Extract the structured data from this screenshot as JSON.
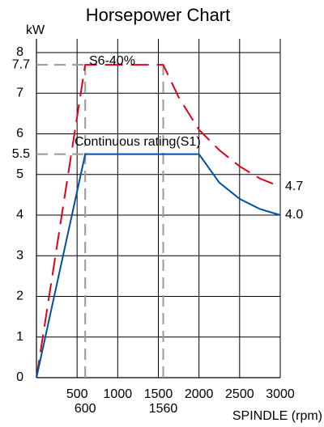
{
  "chart_data": {
    "type": "line",
    "title": "Horsepower Chart",
    "y_label": "kW",
    "x_label": "SPINDLE (rpm)",
    "xlim": [
      0,
      3000
    ],
    "ylim": [
      0,
      8
    ],
    "xticks": [
      500,
      1000,
      1500,
      2000,
      2500,
      3000
    ],
    "ref_xticks": [
      600,
      1560
    ],
    "yticks": [
      0,
      1,
      2,
      3,
      4,
      5,
      6,
      7,
      8
    ],
    "ref_yticks": [
      5.5,
      7.7
    ],
    "grid": true,
    "series": [
      {
        "name": "S6-40%",
        "color": "#e0001b",
        "dashed": true,
        "x": [
          0,
          600,
          1560,
          1750,
          2000,
          2250,
          2500,
          2750,
          3000
        ],
        "values": [
          0,
          7.7,
          7.7,
          6.9,
          6.1,
          5.6,
          5.2,
          4.9,
          4.7
        ],
        "value_labels": [
          null,
          null,
          null,
          null,
          null,
          null,
          null,
          null,
          "4.7"
        ]
      },
      {
        "name": "Continuous rating(S1)",
        "color": "#0050a0",
        "dashed": false,
        "x": [
          0,
          600,
          2000,
          2250,
          2500,
          2750,
          3000
        ],
        "values": [
          0,
          5.5,
          5.5,
          4.8,
          4.4,
          4.15,
          4.0
        ],
        "value_labels": [
          null,
          null,
          null,
          null,
          null,
          null,
          "4.0"
        ]
      }
    ]
  }
}
